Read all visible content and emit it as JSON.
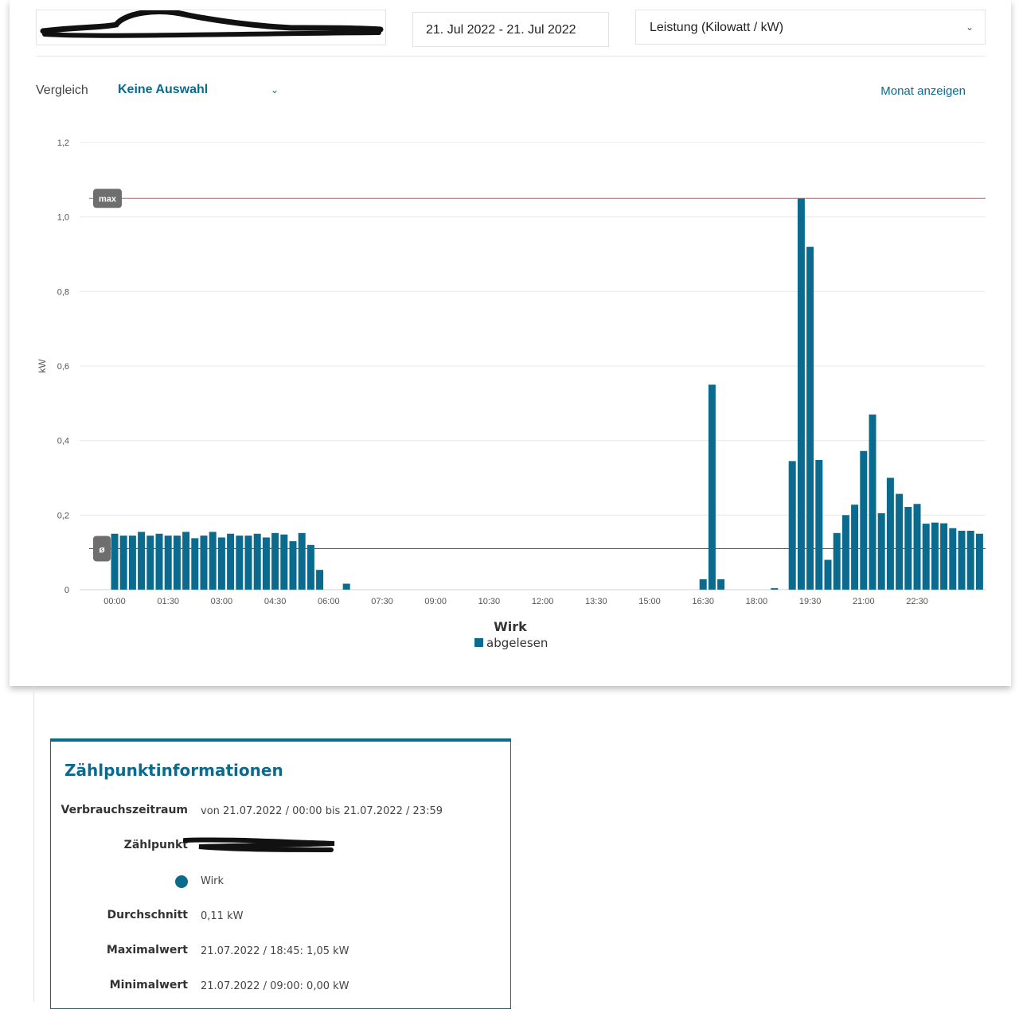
{
  "filters": {
    "date_range": "21. Jul 2022 - 21. Jul 2022",
    "unit_select": "Leistung (Kilowatt / kW)",
    "compare_label": "Vergleich",
    "compare_value": "Keine Auswahl",
    "month_link": "Monat anzeigen"
  },
  "colors": {
    "bar": "#0b6b8f",
    "max_line": "#e05050",
    "avg_line": "#555555",
    "accent": "#0b6b8f"
  },
  "chart_data": {
    "type": "bar",
    "title": "Wirk",
    "ylabel": "kW",
    "ylim": [
      0,
      1.2
    ],
    "yticks": [
      "0",
      "0,2",
      "0,4",
      "0,6",
      "0,8",
      "1,0",
      "1,2"
    ],
    "xticks": [
      "00:00",
      "01:30",
      "03:00",
      "04:30",
      "06:00",
      "07:30",
      "09:00",
      "10:30",
      "12:00",
      "13:30",
      "15:00",
      "16:30",
      "18:00",
      "19:30",
      "21:00",
      "22:30"
    ],
    "interval_minutes": 15,
    "series": [
      {
        "name": "abgelesen"
      }
    ],
    "values": [
      0.15,
      0.145,
      0.145,
      0.155,
      0.145,
      0.15,
      0.145,
      0.145,
      0.155,
      0.138,
      0.145,
      0.155,
      0.14,
      0.15,
      0.145,
      0.145,
      0.15,
      0.14,
      0.152,
      0.148,
      0.13,
      0.152,
      0.12,
      0.053,
      0,
      0,
      0.016,
      0,
      0,
      0,
      0,
      0,
      0,
      0,
      0,
      0,
      0,
      0,
      0,
      0,
      0,
      0,
      0,
      0,
      0,
      0,
      0,
      0,
      0,
      0,
      0,
      0,
      0,
      0,
      0,
      0,
      0,
      0,
      0,
      0,
      0,
      0,
      0,
      0,
      0,
      0,
      0.028,
      0.55,
      0.028,
      0,
      0,
      0,
      0,
      0,
      0.004,
      0,
      0.345,
      1.05,
      0.92,
      0.348,
      0.08,
      0.152,
      0.2,
      0.228,
      0.372,
      0.47,
      0.205,
      0.3,
      0.257,
      0.222,
      0.23,
      0.177,
      0.18,
      0.178,
      0.165,
      0.158,
      0.158,
      0.15
    ],
    "max_line": {
      "label": "max",
      "value": 1.05
    },
    "avg_line": {
      "label": "ø",
      "value": 0.11
    },
    "legend": "bottom"
  },
  "info": {
    "title": "Zählpunktinformationen",
    "period_label": "Verbrauchszeitraum",
    "period_value": "von 21.07.2022 / 00:00 bis 21.07.2022 / 23:59",
    "meter_label": "Zählpunkt",
    "series_label": "Wirk",
    "avg_label": "Durchschnitt",
    "avg_value": "0,11 kW",
    "max_label": "Maximalwert",
    "max_value": "21.07.2022 / 18:45: 1,05 kW",
    "min_label": "Minimalwert",
    "min_value": "21.07.2022 / 09:00: 0,00 kW"
  }
}
